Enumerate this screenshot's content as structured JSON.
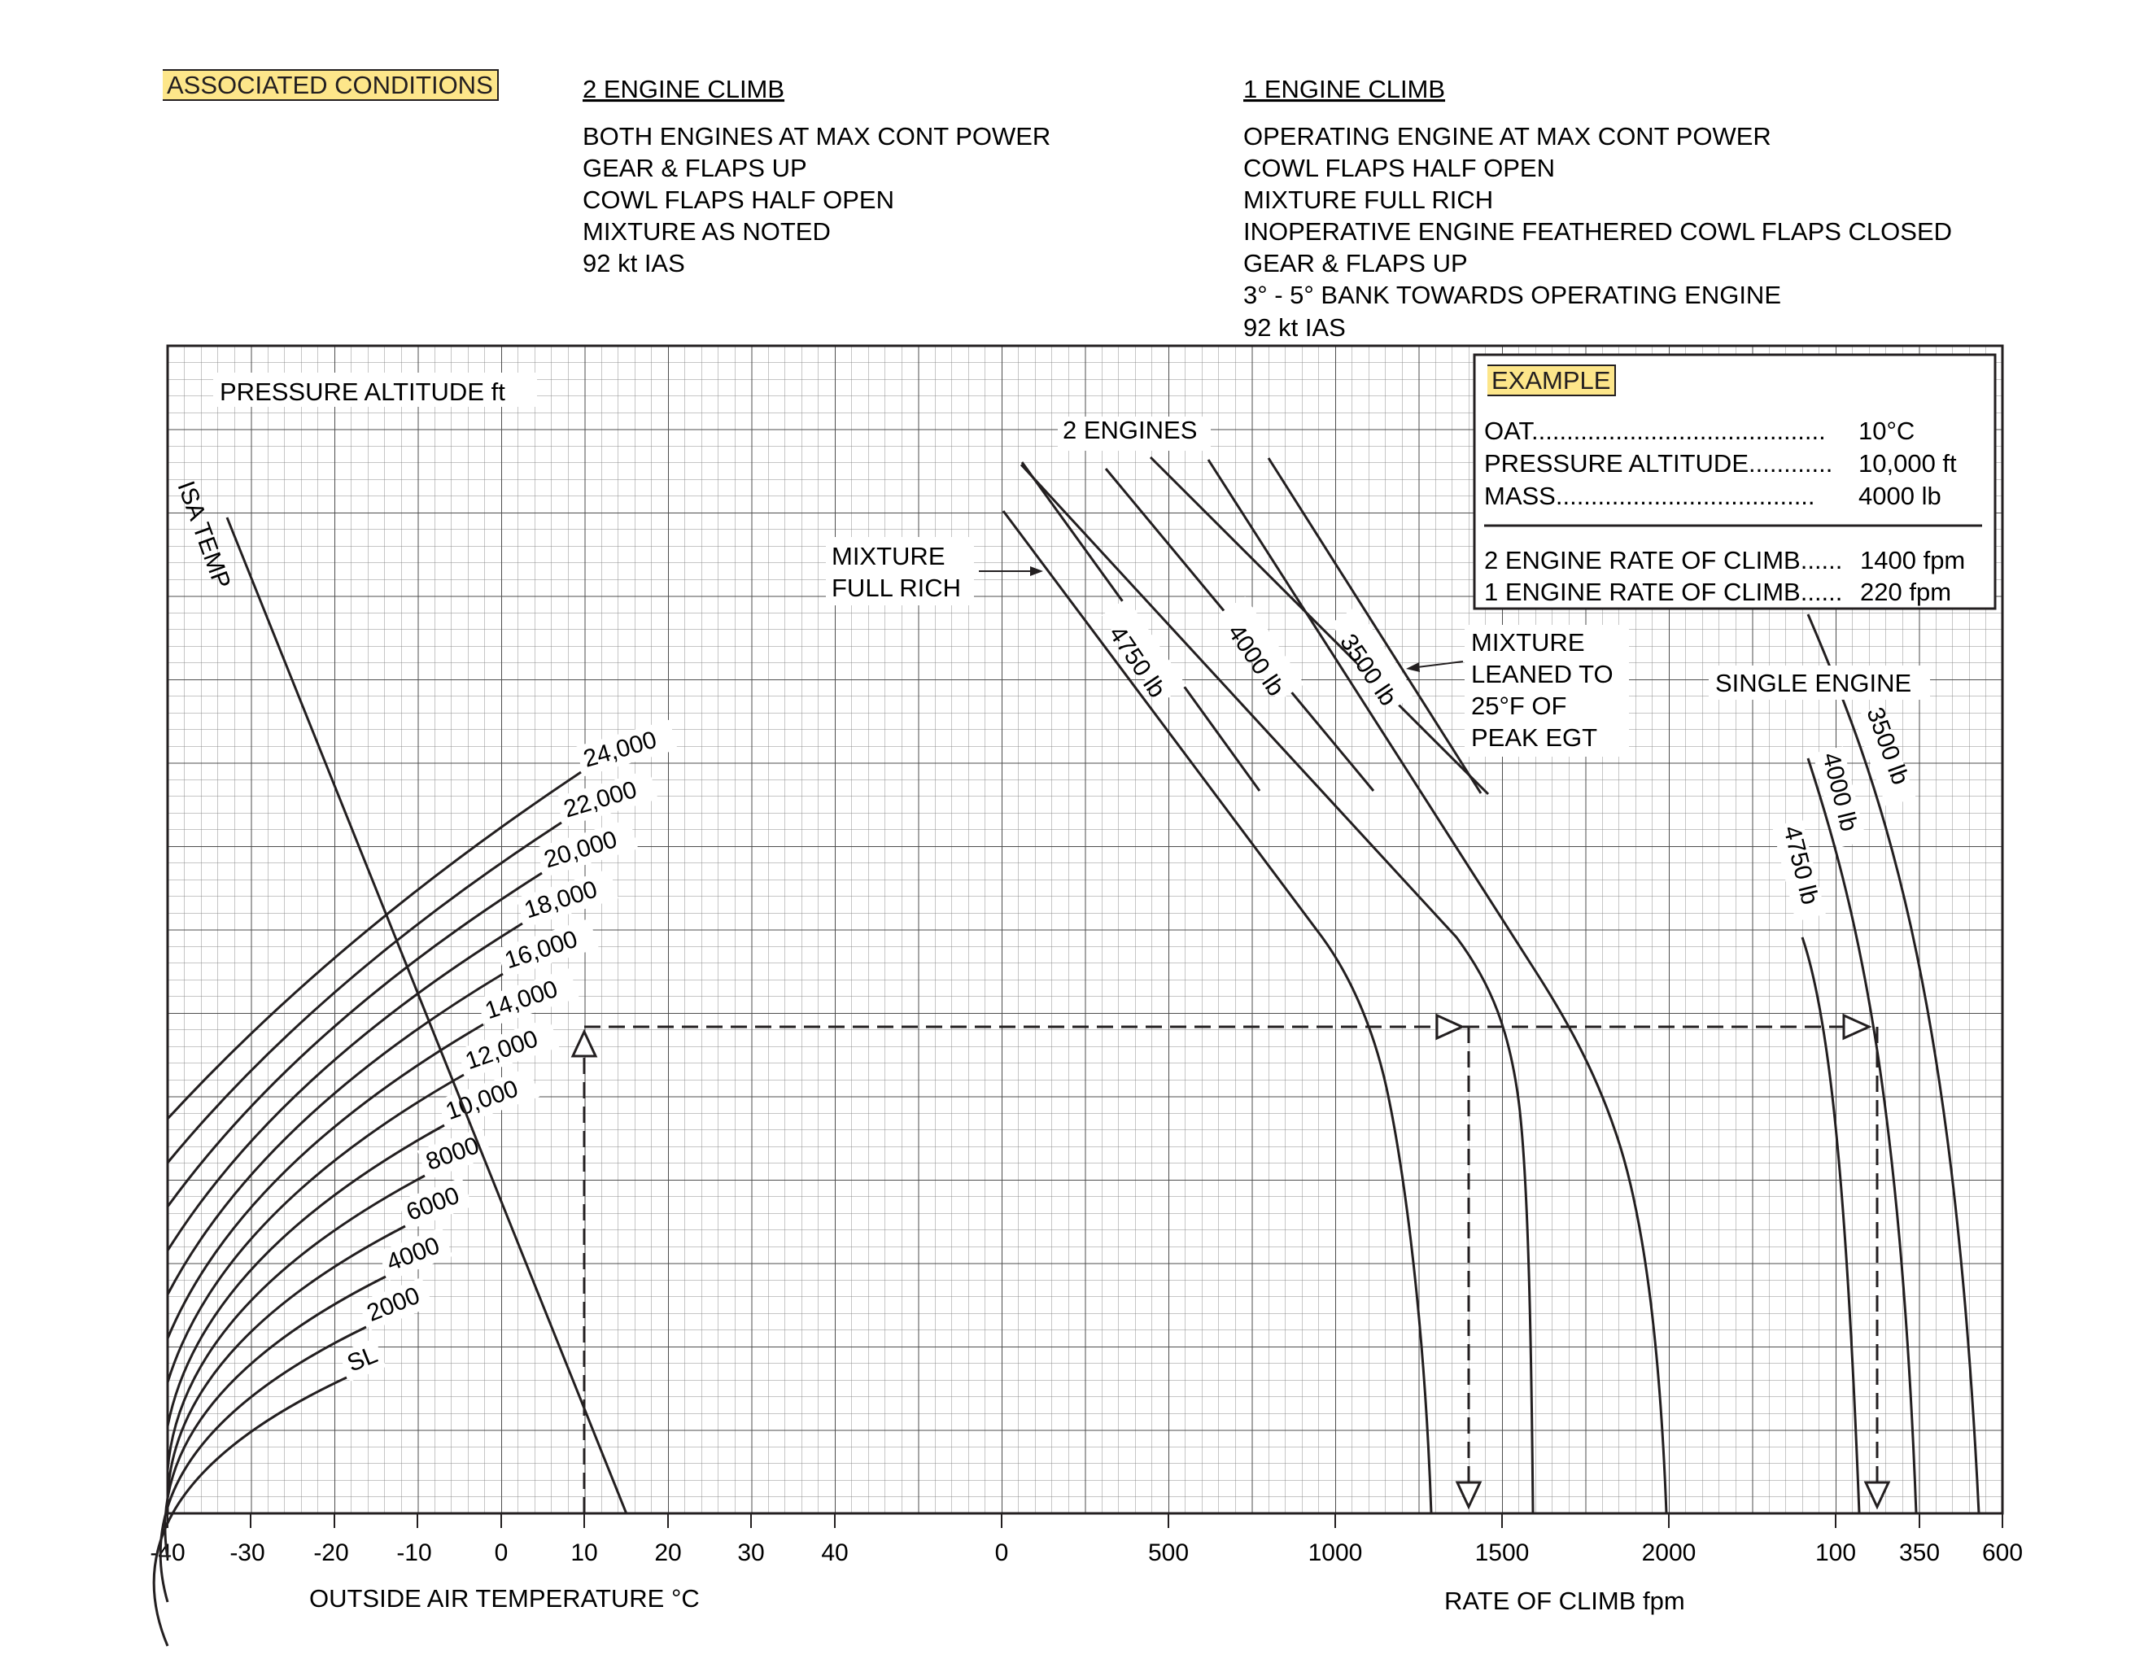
{
  "header": {
    "associated_conditions": "ASSOCIATED CONDITIONS",
    "two_engine": {
      "title": "2 ENGINE CLIMB",
      "lines": [
        "BOTH ENGINES AT MAX CONT POWER",
        "GEAR & FLAPS UP",
        "COWL FLAPS HALF OPEN",
        "MIXTURE AS NOTED",
        "92 kt IAS"
      ]
    },
    "one_engine": {
      "title": "1 ENGINE CLIMB",
      "lines": [
        "OPERATING ENGINE AT MAX CONT POWER",
        "COWL FLAPS HALF OPEN",
        "MIXTURE FULL RICH",
        "INOPERATIVE ENGINE FEATHERED  COWL FLAPS CLOSED",
        "GEAR & FLAPS UP",
        "3° - 5° BANK TOWARDS OPERATING ENGINE",
        "92 kt IAS"
      ]
    }
  },
  "example": {
    "title": "EXAMPLE",
    "rows": [
      {
        "label": "OAT",
        "value": "10°C"
      },
      {
        "label": "PRESSURE ALTITUDE",
        "value": "10,000 ft"
      },
      {
        "label": "MASS",
        "value": "4000 lb"
      }
    ],
    "results": [
      {
        "label": "2 ENGINE RATE OF CLIMB",
        "value": "1400 fpm"
      },
      {
        "label": "1 ENGINE RATE OF CLIMB",
        "value": "220 fpm"
      }
    ]
  },
  "chart_data": {
    "type": "line",
    "grid": true,
    "labels": {
      "pressure_altitude": "PRESSURE ALTITUDE  ft",
      "isa_temp": "ISA TEMP",
      "two_engines": "2 ENGINES",
      "mixture_full_rich": [
        "MIXTURE",
        "FULL RICH"
      ],
      "mixture_leaned": [
        "MIXTURE",
        "LEANED TO",
        "25°F OF",
        "PEAK EGT"
      ],
      "single_engine": "SINGLE ENGINE",
      "xlabel_temp": "OUTSIDE AIR TEMPERATURE  °C",
      "xlabel_roc": "RATE OF CLIMB  fpm"
    },
    "temp_axis": {
      "range": [
        -40,
        40
      ],
      "ticks": [
        "-40",
        "-30",
        "-20",
        "-10",
        "0",
        "10",
        "20",
        "30",
        "40"
      ]
    },
    "two_engine_axis": {
      "range": [
        0,
        2000
      ],
      "ticks": [
        "0",
        "500",
        "1000",
        "1500",
        "2000"
      ]
    },
    "single_engine_axis": {
      "ticks": [
        "100",
        "350",
        "600"
      ]
    },
    "altitude_lines": [
      {
        "label": "24,000",
        "alt": 24000
      },
      {
        "label": "22,000",
        "alt": 22000
      },
      {
        "label": "20,000",
        "alt": 20000
      },
      {
        "label": "18,000",
        "alt": 18000
      },
      {
        "label": "16,000",
        "alt": 16000
      },
      {
        "label": "14,000",
        "alt": 14000
      },
      {
        "label": "12,000",
        "alt": 12000
      },
      {
        "label": "10,000",
        "alt": 10000
      },
      {
        "label": "8000",
        "alt": 8000
      },
      {
        "label": "6000",
        "alt": 6000
      },
      {
        "label": "4000",
        "alt": 4000
      },
      {
        "label": "2000",
        "alt": 2000
      },
      {
        "label": "SL",
        "alt": 0
      }
    ],
    "isa_line": {
      "temp_at_sl": 15,
      "lapse_per_1000ft": -2
    },
    "two_engine_curves": [
      {
        "label": "4750 lb",
        "leaned_extension": true
      },
      {
        "label": "4000 lb",
        "leaned_extension": true
      },
      {
        "label": "3500 lb",
        "leaned_extension": true
      }
    ],
    "single_engine_curves": [
      {
        "label": "4750 lb"
      },
      {
        "label": "4000 lb"
      },
      {
        "label": "3500 lb"
      }
    ],
    "example_path": {
      "oat": 10,
      "pressure_altitude": 10000,
      "mass": 4000,
      "two_engine_roc": 1400,
      "one_engine_roc": 220
    }
  }
}
